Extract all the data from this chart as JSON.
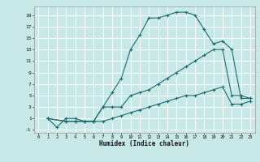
{
  "xlabel": "Humidex (Indice chaleur)",
  "bg_color": "#c8e8e8",
  "grid_color": "#ffffff",
  "line_color": "#1a6b6b",
  "xlim": [
    -0.5,
    23.5
  ],
  "ylim": [
    -1.5,
    20.5
  ],
  "xticks": [
    0,
    1,
    2,
    3,
    4,
    5,
    6,
    7,
    8,
    9,
    10,
    11,
    12,
    13,
    14,
    15,
    16,
    17,
    18,
    19,
    20,
    21,
    22,
    23
  ],
  "yticks": [
    -1,
    1,
    3,
    5,
    7,
    9,
    11,
    13,
    15,
    17,
    19
  ],
  "line1_x": [
    1,
    2,
    3,
    4,
    5,
    6,
    7,
    8,
    9,
    10,
    11,
    12,
    13,
    14,
    15,
    16,
    17,
    18,
    19,
    20,
    21,
    22,
    23
  ],
  "line1_y": [
    1,
    -0.5,
    1,
    1,
    0.5,
    0.5,
    3,
    5.5,
    8,
    13,
    15.5,
    18.5,
    18.5,
    19,
    19.5,
    19.5,
    19,
    16.5,
    14,
    14.5,
    13,
    4.5,
    4.5
  ],
  "line2_x": [
    1,
    3,
    4,
    5,
    6,
    7,
    8,
    9,
    10,
    11,
    12,
    13,
    14,
    15,
    16,
    17,
    18,
    19,
    20,
    21,
    22,
    23
  ],
  "line2_y": [
    1,
    0.5,
    0.5,
    0.5,
    0.5,
    3,
    3,
    3,
    5,
    5.5,
    6,
    7,
    8,
    9,
    10,
    11,
    12,
    13,
    13,
    5,
    5,
    4.5
  ],
  "line3_x": [
    1,
    3,
    4,
    5,
    6,
    7,
    8,
    9,
    10,
    11,
    12,
    13,
    14,
    15,
    16,
    17,
    18,
    19,
    20,
    21,
    22,
    23
  ],
  "line3_y": [
    1,
    0.5,
    0.5,
    0.5,
    0.5,
    0.5,
    1,
    1.5,
    2,
    2.5,
    3,
    3.5,
    4,
    4.5,
    5,
    5,
    5.5,
    6,
    6.5,
    3.5,
    3.5,
    4
  ]
}
